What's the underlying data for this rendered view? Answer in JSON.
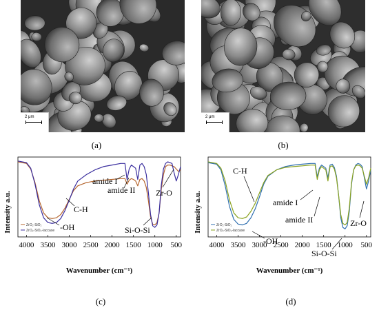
{
  "panels": {
    "a": {
      "caption": "(a)",
      "scale_label": "2 μm"
    },
    "b": {
      "caption": "(b)",
      "scale_label": "2 μm"
    },
    "c": {
      "caption": "(c)"
    },
    "d": {
      "caption": "(d)"
    }
  },
  "chart_data": [
    {
      "type": "line",
      "panel": "c",
      "xlabel": "Wavenumber (cm⁻¹)",
      "ylabel": "Intensity a.u.",
      "xlim": [
        4000,
        500
      ],
      "xticks": [
        "4000",
        "3500",
        "3000",
        "2500",
        "2000",
        "1500",
        "1000",
        "500"
      ],
      "legend_placement": "bottom-left",
      "series": [
        {
          "name": "ZrO₂-SiO₂",
          "color": "#b5652e",
          "x": [
            4200,
            4000,
            3900,
            3800,
            3700,
            3600,
            3500,
            3400,
            3300,
            3200,
            3100,
            3000,
            2900,
            2800,
            2600,
            2400,
            2200,
            2000,
            1800,
            1700,
            1650,
            1600,
            1550,
            1500,
            1450,
            1400,
            1350,
            1300,
            1250,
            1200,
            1150,
            1100,
            1050,
            1000,
            950,
            900,
            850,
            800,
            750,
            700,
            650,
            600,
            550,
            500,
            450,
            400
          ],
          "y": [
            94,
            92,
            85,
            68,
            45,
            30,
            24,
            23,
            24,
            28,
            36,
            47,
            58,
            64,
            68,
            70,
            71,
            72,
            73,
            73,
            66,
            71,
            73,
            72,
            70,
            64,
            72,
            73,
            70,
            62,
            45,
            25,
            16,
            15,
            18,
            30,
            60,
            78,
            88,
            90,
            90,
            89,
            88,
            85,
            82,
            84
          ]
        },
        {
          "name": "ZrO₂-SiO₂-laccase",
          "color": "#3a2e9e",
          "x": [
            4200,
            4000,
            3900,
            3800,
            3700,
            3600,
            3500,
            3400,
            3300,
            3200,
            3100,
            3000,
            2900,
            2800,
            2600,
            2400,
            2200,
            2000,
            1800,
            1700,
            1650,
            1600,
            1550,
            1500,
            1450,
            1400,
            1350,
            1300,
            1250,
            1200,
            1150,
            1100,
            1050,
            1000,
            950,
            900,
            850,
            800,
            750,
            700,
            650,
            600,
            550,
            500,
            450,
            400
          ],
          "y": [
            95,
            93,
            86,
            66,
            40,
            24,
            18,
            17,
            18,
            23,
            33,
            46,
            60,
            70,
            78,
            84,
            88,
            90,
            92,
            92,
            72,
            85,
            90,
            88,
            86,
            72,
            90,
            92,
            88,
            78,
            55,
            28,
            14,
            12,
            15,
            30,
            65,
            85,
            92,
            94,
            93,
            92,
            80,
            70,
            78,
            88
          ]
        }
      ],
      "annotations": [
        "amide I",
        "amide II",
        "Zr-O",
        "C-H",
        "-OH",
        "Si-O-Si"
      ]
    },
    {
      "type": "line",
      "panel": "d",
      "xlabel": "Wavenumber (cm⁻¹)",
      "ylabel": "Intensity a.u.",
      "xlim": [
        4000,
        500
      ],
      "xticks": [
        "4000",
        "3500",
        "3000",
        "2500",
        "2000",
        "1500",
        "1000",
        "500"
      ],
      "legend_placement": "bottom-left",
      "series": [
        {
          "name": "ZrO₂-SiO₂",
          "color": "#2f6fb0",
          "x": [
            4200,
            4000,
            3900,
            3800,
            3700,
            3600,
            3500,
            3400,
            3300,
            3200,
            3100,
            3000,
            2900,
            2800,
            2600,
            2400,
            2200,
            2000,
            1800,
            1700,
            1650,
            1600,
            1550,
            1500,
            1450,
            1400,
            1350,
            1300,
            1250,
            1200,
            1150,
            1100,
            1050,
            1000,
            950,
            900,
            850,
            800,
            750,
            700,
            650,
            600,
            550,
            500,
            450,
            400
          ],
          "y": [
            93,
            91,
            84,
            64,
            38,
            22,
            16,
            15,
            17,
            24,
            35,
            50,
            66,
            76,
            84,
            88,
            90,
            91,
            92,
            92,
            75,
            86,
            90,
            88,
            86,
            74,
            90,
            91,
            87,
            76,
            52,
            24,
            12,
            10,
            14,
            32,
            66,
            84,
            90,
            92,
            91,
            88,
            74,
            60,
            70,
            84
          ]
        },
        {
          "name": "ZrO₂-SiO₂-laccase",
          "color": "#8aa21e",
          "x": [
            4200,
            4000,
            3900,
            3800,
            3700,
            3600,
            3500,
            3400,
            3300,
            3200,
            3100,
            3000,
            2900,
            2800,
            2600,
            2400,
            2200,
            2000,
            1800,
            1700,
            1650,
            1600,
            1550,
            1500,
            1450,
            1400,
            1350,
            1300,
            1250,
            1200,
            1150,
            1100,
            1050,
            1000,
            950,
            900,
            850,
            800,
            750,
            700,
            650,
            600,
            550,
            500,
            450,
            400
          ],
          "y": [
            94,
            92,
            86,
            70,
            46,
            30,
            24,
            23,
            25,
            32,
            42,
            55,
            68,
            77,
            84,
            87,
            88,
            89,
            90,
            90,
            72,
            84,
            88,
            86,
            84,
            70,
            88,
            89,
            85,
            74,
            52,
            28,
            17,
            15,
            18,
            36,
            68,
            84,
            89,
            90,
            89,
            86,
            76,
            66,
            74,
            86
          ]
        }
      ],
      "annotations": [
        "C-H",
        "amide I",
        "amide II",
        "Zr-O",
        "-OH",
        "Si-O-Si"
      ]
    }
  ]
}
